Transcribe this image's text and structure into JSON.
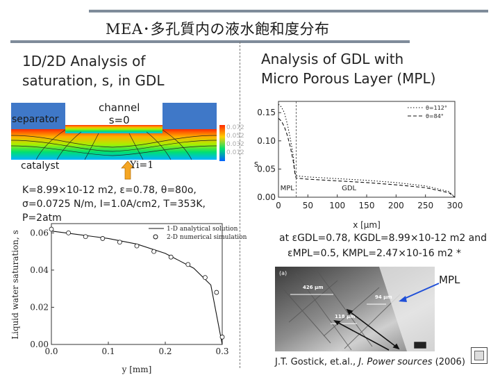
{
  "slide": {
    "title": "MEA･多孔質内の液水飽和度分布",
    "left_heading_1": "1D/2D Analysis of",
    "left_heading_2": "saturation, s, in GDL",
    "right_heading_1": "Analysis of GDL with",
    "right_heading_2": "Micro Porous Layer (MPL)"
  },
  "domain_diagram": {
    "separator_label": "separator",
    "channel_label_1": "channel",
    "channel_label_2": "s=0",
    "catalyst_label": "catalyst",
    "flux_label": "Yi=1",
    "contour_values": [
      "0.072",
      "0.052",
      "0.032",
      "0.012"
    ]
  },
  "conditions": {
    "line1": "K=8.99×10-12 m2, ε=0.78, θ=80o,",
    "line2": "σ=0.0725 N/m, I=1.0A/cm2, T=353K,",
    "line3": "P=2atm"
  },
  "mpl_note": {
    "line1": "at εGDL=0.78, KGDL=8.99×10-12 m2 and",
    "line2": "εMPL=0.5, KMPL=2.47×10-16 m2 *"
  },
  "micrograph": {
    "label_a": "(a)",
    "mpl_label": "MPL",
    "scale_1": "426 µm",
    "scale_2": "94 µm",
    "scale_3": "118 µm"
  },
  "citation": {
    "authors": "J.T. Gostick, et.al., ",
    "journal": "J. Power sources",
    "year": " (2006)"
  },
  "chart_data": [
    {
      "type": "line",
      "title": "",
      "xlabel": "y [mm]",
      "ylabel": "Liquid water saturation,  s",
      "xlim": [
        0.0,
        0.3
      ],
      "ylim": [
        0.0,
        0.065
      ],
      "x_ticks": [
        "0.0",
        "0.1",
        "0.2",
        "0.3"
      ],
      "y_ticks": [
        "0.00",
        "0.02",
        "0.04",
        "0.06"
      ],
      "legend": "top-right",
      "series": [
        {
          "name": "1-D analytical solution",
          "style": "solid",
          "x": [
            0.0,
            0.05,
            0.1,
            0.15,
            0.2,
            0.25,
            0.28,
            0.3
          ],
          "y": [
            0.061,
            0.059,
            0.057,
            0.054,
            0.049,
            0.041,
            0.032,
            0.0
          ]
        },
        {
          "name": "2-D numerical simulation",
          "style": "circles",
          "x": [
            0.0,
            0.03,
            0.06,
            0.09,
            0.12,
            0.15,
            0.18,
            0.21,
            0.24,
            0.27,
            0.29,
            0.3
          ],
          "y": [
            0.062,
            0.06,
            0.058,
            0.057,
            0.055,
            0.053,
            0.05,
            0.047,
            0.043,
            0.036,
            0.028,
            0.004
          ]
        }
      ]
    },
    {
      "type": "line",
      "title": "",
      "xlabel": "x [μm]",
      "ylabel": "s",
      "xlim": [
        0,
        300
      ],
      "ylim": [
        0.0,
        0.17
      ],
      "x_ticks": [
        "0",
        "50",
        "100",
        "150",
        "200",
        "250",
        "300"
      ],
      "y_ticks": [
        "0.00",
        "0.05",
        "0.10",
        "0.15"
      ],
      "legend": "top-right",
      "region_labels": [
        "MPL",
        "GDL"
      ],
      "series": [
        {
          "name": "θ=112°",
          "style": "dotted",
          "x": [
            0,
            5,
            10,
            15,
            20,
            25,
            28,
            30,
            50,
            100,
            150,
            200,
            250,
            290,
            300
          ],
          "y": [
            0.165,
            0.16,
            0.15,
            0.13,
            0.105,
            0.075,
            0.045,
            0.038,
            0.036,
            0.033,
            0.03,
            0.026,
            0.02,
            0.01,
            0.0
          ]
        },
        {
          "name": "θ=84°",
          "style": "dashed",
          "x": [
            0,
            5,
            10,
            15,
            20,
            25,
            28,
            30,
            50,
            100,
            150,
            200,
            250,
            290,
            300
          ],
          "y": [
            0.14,
            0.135,
            0.125,
            0.11,
            0.09,
            0.065,
            0.042,
            0.034,
            0.032,
            0.029,
            0.026,
            0.022,
            0.017,
            0.008,
            0.0
          ]
        }
      ]
    }
  ]
}
